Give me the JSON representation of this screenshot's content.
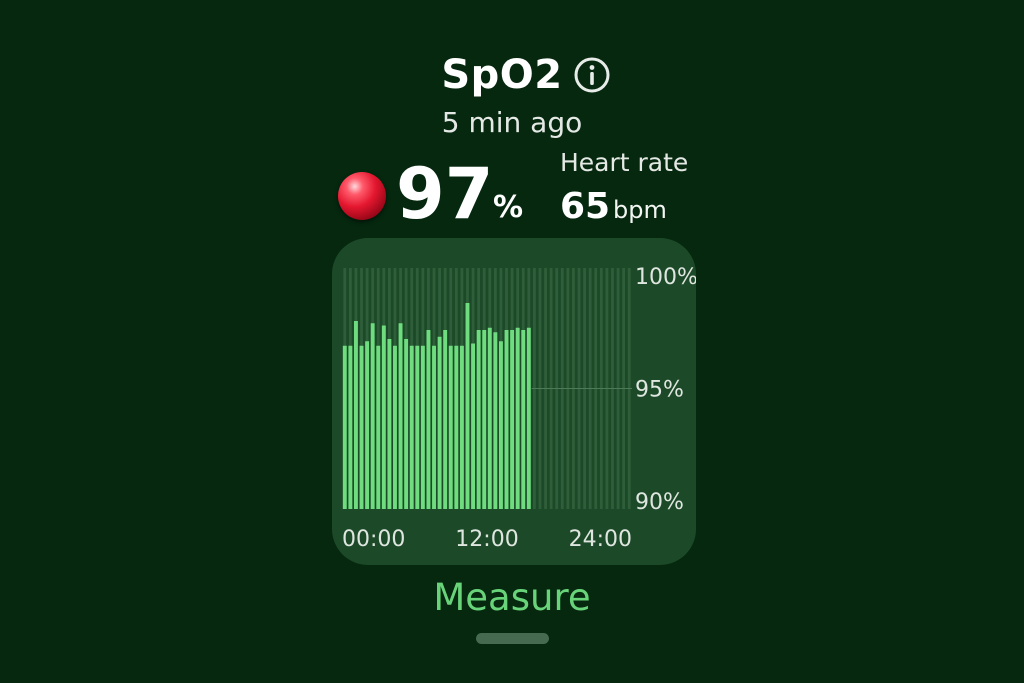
{
  "header": {
    "title": "SpO2",
    "info_icon": "info-circle-icon",
    "subtitle": "5 min ago"
  },
  "spo2": {
    "value": "97",
    "unit": "%",
    "icon": "red-sphere-icon"
  },
  "heart_rate": {
    "label": "Heart rate",
    "value": "65",
    "unit": "bpm"
  },
  "chart_data": {
    "type": "bar",
    "x_tick_labels": [
      "00:00",
      "12:00",
      "24:00"
    ],
    "y_tick_labels": [
      "100%",
      "95%",
      "90%"
    ],
    "ylim": [
      90,
      100
    ],
    "x_range_hours": [
      0,
      24
    ],
    "bar_color": "#6fdc7f",
    "values": [
      96.9,
      96.9,
      98.0,
      96.9,
      97.1,
      97.9,
      96.9,
      97.8,
      97.2,
      96.9,
      97.9,
      97.2,
      96.9,
      96.9,
      96.9,
      97.6,
      96.9,
      97.3,
      97.6,
      96.9,
      96.9,
      96.9,
      98.8,
      97.0,
      97.6,
      97.6,
      97.7,
      97.5,
      97.1,
      97.6,
      97.6,
      97.7,
      97.6,
      97.7
    ],
    "grid": "vertical stripes"
  },
  "actions": {
    "measure_label": "Measure"
  },
  "colors": {
    "background": "#05280f",
    "card": "#1c4a28",
    "accent": "#69d37a"
  }
}
